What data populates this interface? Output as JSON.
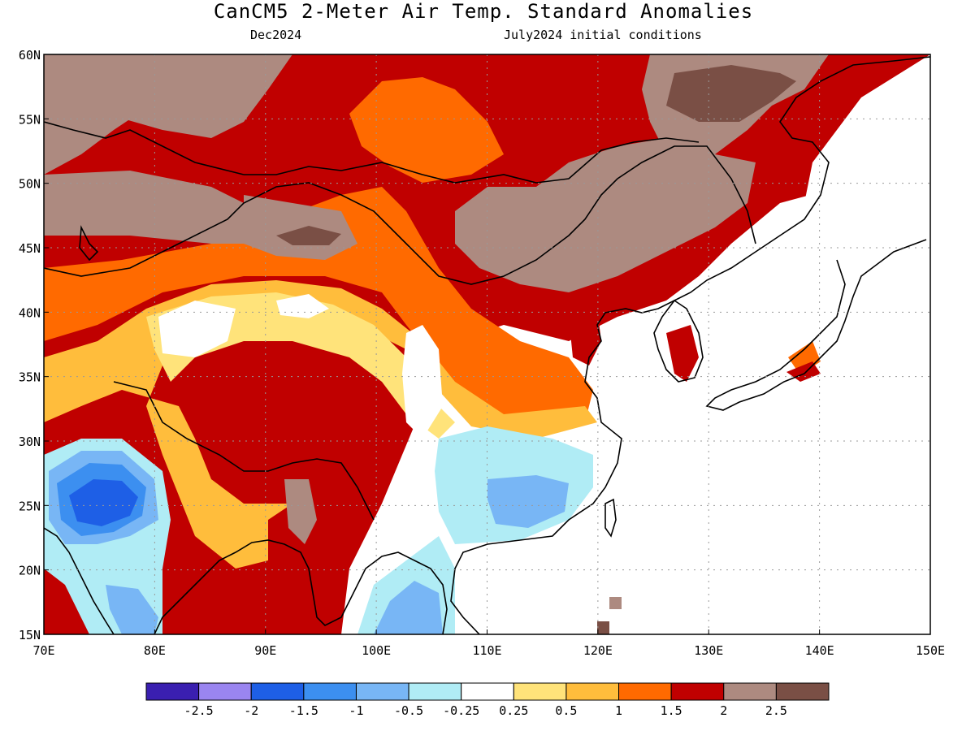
{
  "title": "CanCM5 2-Meter Air Temp. Standard Anomalies",
  "subtitle_left": "Dec2024",
  "subtitle_right": "July2024 initial conditions",
  "map": {
    "lon_range": [
      70,
      150
    ],
    "lat_range": [
      15,
      60
    ],
    "lon_ticks": [
      {
        "value": 70,
        "label": "70E"
      },
      {
        "value": 80,
        "label": "80E"
      },
      {
        "value": 90,
        "label": "90E"
      },
      {
        "value": 100,
        "label": "100E"
      },
      {
        "value": 110,
        "label": "110E"
      },
      {
        "value": 120,
        "label": "120E"
      },
      {
        "value": 130,
        "label": "130E"
      },
      {
        "value": 140,
        "label": "140E"
      },
      {
        "value": 150,
        "label": "150E"
      }
    ],
    "lat_ticks": [
      {
        "value": 15,
        "label": "15N"
      },
      {
        "value": 20,
        "label": "20N"
      },
      {
        "value": 25,
        "label": "25N"
      },
      {
        "value": 30,
        "label": "30N"
      },
      {
        "value": 35,
        "label": "35N"
      },
      {
        "value": 40,
        "label": "40N"
      },
      {
        "value": 45,
        "label": "45N"
      },
      {
        "value": 50,
        "label": "50N"
      },
      {
        "value": 55,
        "label": "55N"
      },
      {
        "value": 60,
        "label": "60N"
      }
    ],
    "grid": "dotted"
  },
  "legend": {
    "colors": [
      "#3a1fb0",
      "#9a85f0",
      "#1e5fe6",
      "#3c8ff0",
      "#78b6f5",
      "#b0ecf5",
      "#ffffff",
      "#ffe37a",
      "#ffbd3c",
      "#ff6a00",
      "#c00000",
      "#ad8a80",
      "#7a4f45"
    ],
    "labels": [
      "-2.5",
      "-2",
      "-1.5",
      "-1",
      "-0.5",
      "-0.25",
      "0.25",
      "0.5",
      "1",
      "1.5",
      "2",
      "2.5"
    ]
  }
}
